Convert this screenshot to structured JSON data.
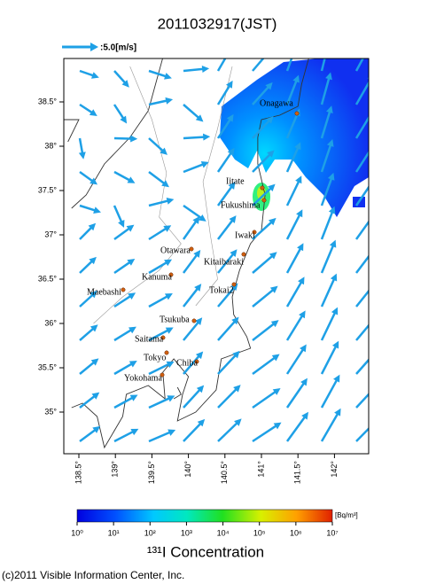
{
  "title": "2011032917(JST)",
  "scale_label": ":5.0[m/s]",
  "xticks": [
    {
      "value": 138.5,
      "label": "138.5°"
    },
    {
      "value": 139,
      "label": "139°"
    },
    {
      "value": 139.5,
      "label": "139.5°"
    },
    {
      "value": 140,
      "label": "140°"
    },
    {
      "value": 140.5,
      "label": "140.5°"
    },
    {
      "value": 141,
      "label": "141°"
    },
    {
      "value": 141.5,
      "label": "141.5°"
    },
    {
      "value": 142,
      "label": "142°"
    }
  ],
  "yticks": [
    {
      "value": 38.5,
      "label": "38.5°"
    },
    {
      "value": 38,
      "label": "38°"
    },
    {
      "value": 37.5,
      "label": "37.5°"
    },
    {
      "value": 37,
      "label": "37°"
    },
    {
      "value": 36.5,
      "label": "36.5°"
    },
    {
      "value": 36,
      "label": "36°"
    },
    {
      "value": 35.5,
      "label": "35.5°"
    },
    {
      "value": 35,
      "label": "35°"
    }
  ],
  "cities": [
    "Onagawa",
    "Iitate",
    "Fukushima",
    "Iwaki",
    "Kitaibaraki",
    "Otawara",
    "Kanuma",
    "Maebashi",
    "Tokai2",
    "Tsukuba",
    "Saitama",
    "Tokyo",
    "Chiba",
    "Yokohama"
  ],
  "colorbar": {
    "ticks": [
      {
        "value": 1,
        "label": "10⁰"
      },
      {
        "value": 10,
        "label": "10¹"
      },
      {
        "value": 100,
        "label": "10²"
      },
      {
        "value": 1000,
        "label": "10³"
      },
      {
        "value": 10000,
        "label": "10⁴"
      },
      {
        "value": 100000,
        "label": "10⁵"
      },
      {
        "value": 1000000,
        "label": "10⁶"
      },
      {
        "value": 10000000,
        "label": "10⁷"
      }
    ],
    "unit": "[Bq/m³]",
    "title": "¹³¹I Concentration"
  },
  "copyright": "(c)2011 Visible Information Center, Inc."
}
